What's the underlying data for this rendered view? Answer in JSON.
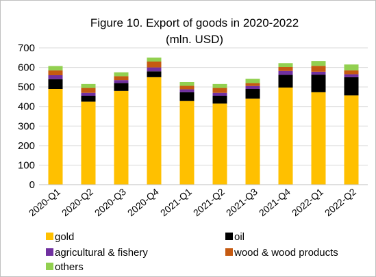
{
  "chart_data": {
    "type": "bar",
    "stacked": true,
    "title": "Figure 10. Export of goods in 2020-2022",
    "subtitle": "(mln. USD)",
    "xlabel": "",
    "ylabel": "",
    "ylim": [
      0,
      700
    ],
    "yticks": [
      0,
      100,
      200,
      300,
      400,
      500,
      600,
      700
    ],
    "grid": true,
    "legend_position": "bottom",
    "categories": [
      "2020-Q1",
      "2020-Q2",
      "2020-Q3",
      "2020-Q4",
      "2021-Q1",
      "2021-Q2",
      "2021-Q3",
      "2021-Q4",
      "2022-Q1",
      "2022-Q2"
    ],
    "series": [
      {
        "name": "gold",
        "color": "#ffc000",
        "values": [
          490,
          425,
          480,
          550,
          428,
          415,
          440,
          497,
          473,
          457
        ]
      },
      {
        "name": "oil",
        "color": "#000000",
        "values": [
          50,
          30,
          40,
          30,
          45,
          40,
          50,
          65,
          90,
          93
        ]
      },
      {
        "name": "agricultural & fishery",
        "color": "#7030a0",
        "values": [
          20,
          15,
          15,
          20,
          15,
          15,
          15,
          20,
          15,
          15
        ]
      },
      {
        "name": "wood & wood products",
        "color": "#c55a11",
        "values": [
          25,
          25,
          20,
          30,
          18,
          25,
          15,
          20,
          30,
          20
        ]
      },
      {
        "name": "others",
        "color": "#92d050",
        "values": [
          22,
          20,
          20,
          20,
          19,
          20,
          22,
          20,
          25,
          30
        ]
      }
    ]
  }
}
